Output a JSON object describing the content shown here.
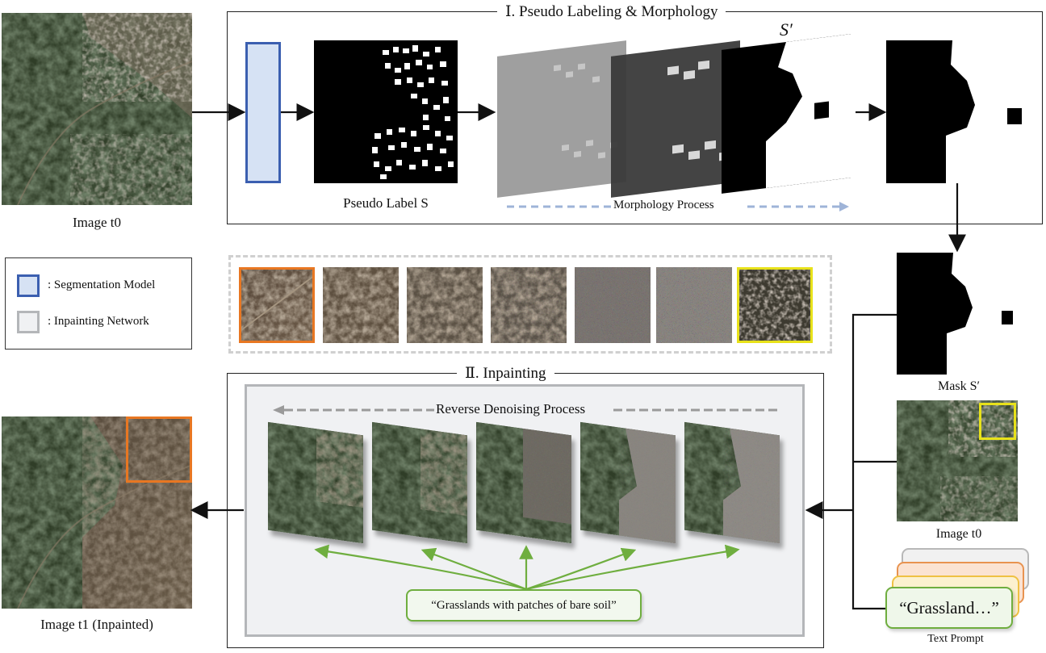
{
  "stage1": {
    "title": "Ⅰ. Pseudo Labeling & Morphology",
    "pseudo_label": "Pseudo Label S",
    "morphology": "Morphology Process",
    "s_prime": "S′"
  },
  "stage2": {
    "title": "Ⅱ. Inpainting",
    "reverse": "Reverse Denoising Process",
    "prompt_full": "“Grasslands with patches of bare soil”"
  },
  "left": {
    "image_t0": "Image t0",
    "image_t1": "Image t1 (Inpainted)"
  },
  "right": {
    "mask": "Mask S′",
    "image_t0": "Image t0",
    "prompt_short": "“Grassland…”",
    "text_prompt": "Text Prompt"
  },
  "legend": {
    "seg": ": Segmentation Model",
    "inp": ": Inpainting Network"
  },
  "colors": {
    "seg_blue": "#3b5fb0",
    "seg_fill": "#d6e2f4",
    "inp_grey": "#b4b6b9",
    "orange": "#e87722",
    "yellow": "#e8e21a",
    "green": "#6fae3f",
    "dash_blue": "#9fb4d8"
  }
}
